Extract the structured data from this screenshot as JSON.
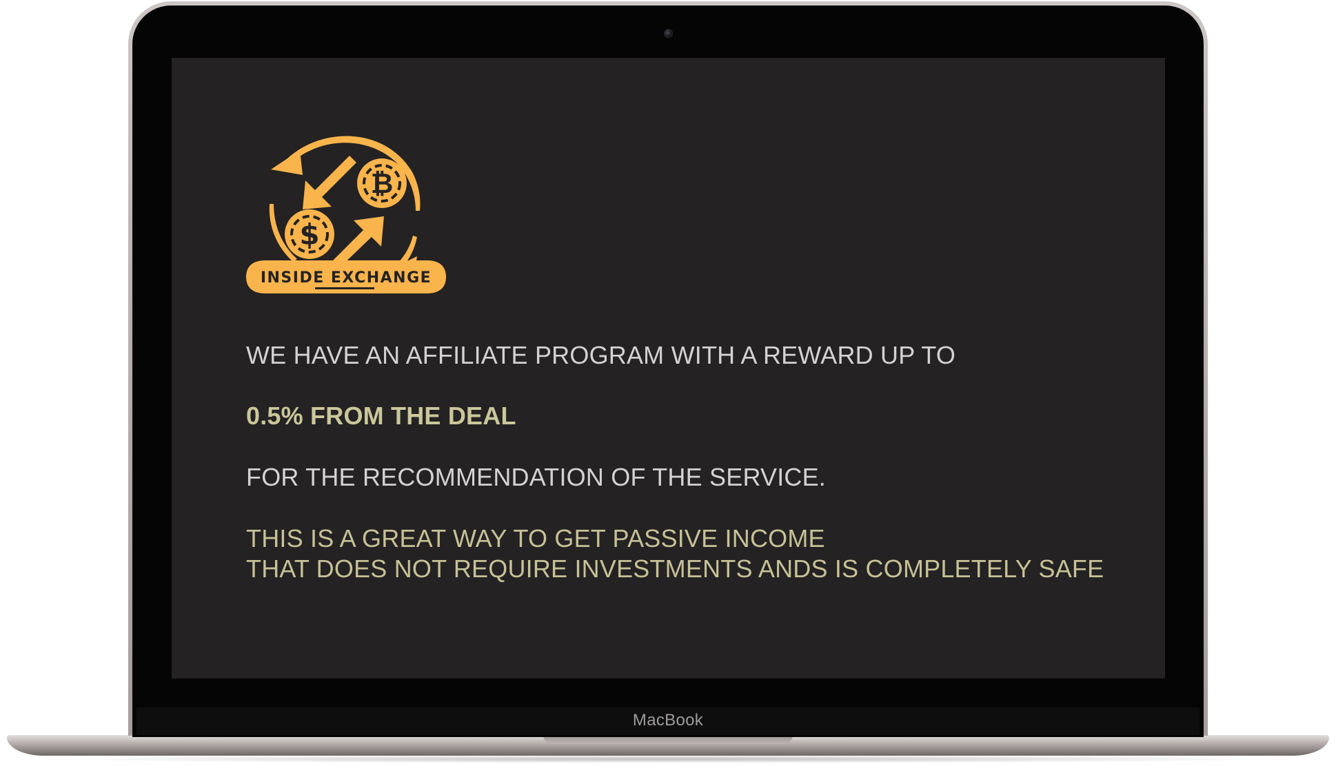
{
  "logo": {
    "text": "INSIDE EXCHANGE",
    "icon": "currency-exchange-icon",
    "color": "#f9b44c"
  },
  "content": {
    "line1": "WE HAVE AN AFFILIATE PROGRAM WITH A REWARD UP TO",
    "line2": "0.5% FROM THE DEAL",
    "line3": "FOR THE RECOMMENDATION OF THE SERVICE.",
    "line4": "THIS IS A GREAT WAY TO GET PASSIVE INCOME",
    "line5": "THAT DOES NOT REQUIRE INVESTMENTS ANDS IS COMPLETELY SAFE"
  },
  "device": {
    "brand": "MacBook"
  },
  "colors": {
    "screen_bg": "#242223",
    "text_primary": "#d4d2d3",
    "text_accent": "#cac79b",
    "logo": "#f9b44c"
  }
}
